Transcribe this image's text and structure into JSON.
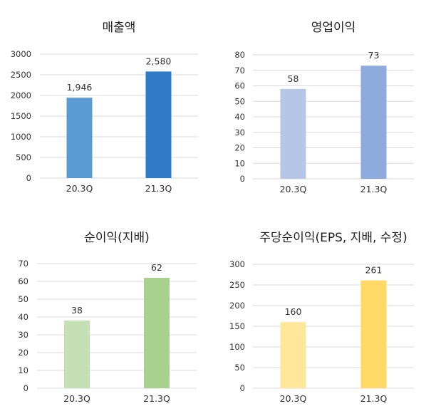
{
  "chart_data": [
    {
      "type": "bar",
      "title": "매출액",
      "categories": [
        "20.3Q",
        "21.3Q"
      ],
      "values": [
        1946,
        2580
      ],
      "value_labels": [
        "1,946",
        "2,580"
      ],
      "ylim": [
        0,
        3000
      ],
      "yticks": [
        0,
        500,
        1000,
        1500,
        2000,
        2500,
        3000
      ],
      "grid": true,
      "bar_colors": [
        "#5B9BD5",
        "#2F7BC8"
      ]
    },
    {
      "type": "bar",
      "title": "영업이익",
      "categories": [
        "20.3Q",
        "21.3Q"
      ],
      "values": [
        58,
        73
      ],
      "value_labels": [
        "58",
        "73"
      ],
      "ylim": [
        0,
        80
      ],
      "yticks": [
        0,
        10,
        20,
        30,
        40,
        50,
        60,
        70,
        80
      ],
      "grid": true,
      "bar_colors": [
        "#B4C7E7",
        "#8FAADC"
      ]
    },
    {
      "type": "bar",
      "title": "순이익(지배)",
      "categories": [
        "20.3Q",
        "21.3Q"
      ],
      "values": [
        38,
        62
      ],
      "value_labels": [
        "38",
        "62"
      ],
      "ylim": [
        0,
        70
      ],
      "yticks": [
        0,
        10,
        20,
        30,
        40,
        50,
        60,
        70
      ],
      "grid": true,
      "bar_colors": [
        "#C5E0B4",
        "#A9D18E"
      ]
    },
    {
      "type": "bar",
      "title": "주당순이익(EPS, 지배, 수정)",
      "categories": [
        "20.3Q",
        "21.3Q"
      ],
      "values": [
        160,
        261
      ],
      "value_labels": [
        "160",
        "261"
      ],
      "ylim": [
        0,
        300
      ],
      "yticks": [
        0,
        50,
        100,
        150,
        200,
        250,
        300
      ],
      "grid": true,
      "bar_colors": [
        "#FFE699",
        "#FFD966"
      ]
    }
  ],
  "colors": {
    "grid": "#d9d9d9",
    "text": "#333333",
    "title": "#222222"
  }
}
